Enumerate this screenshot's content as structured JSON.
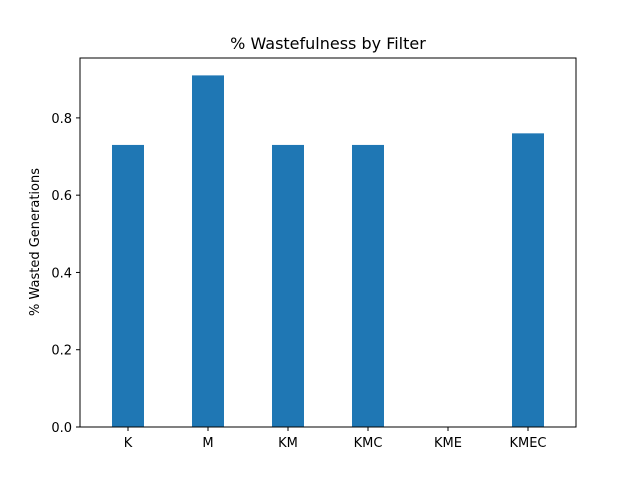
{
  "chart_data": {
    "type": "bar",
    "title": "% Wastefulness by Filter",
    "xlabel": "",
    "ylabel": "% Wasted Generations",
    "categories": [
      "K",
      "M",
      "KM",
      "KMC",
      "KME",
      "KMEC"
    ],
    "values": [
      0.73,
      0.91,
      0.73,
      0.73,
      0.0,
      0.76
    ],
    "ylim": [
      0,
      0.955
    ],
    "yticks": [
      0.0,
      0.2,
      0.4,
      0.6,
      0.8
    ],
    "ytick_labels": [
      "0.0",
      "0.2",
      "0.4",
      "0.6",
      "0.8"
    ],
    "bar_color": "#1f77b4",
    "grid": false,
    "legend": null
  }
}
